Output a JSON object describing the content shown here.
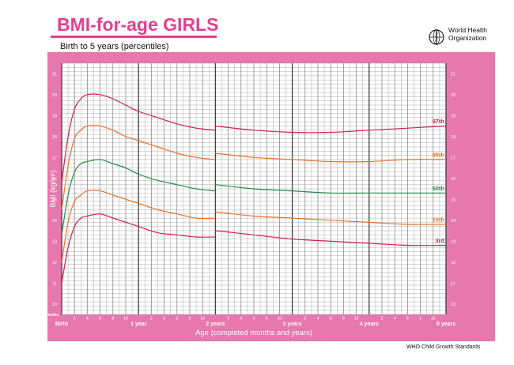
{
  "header": {
    "title": "BMI-for-age GIRLS",
    "subtitle": "Birth to 5 years (percentiles)",
    "org_line1": "World Health",
    "org_line2": "Organization"
  },
  "footer": {
    "source": "WHO Child Growth Standards"
  },
  "colors": {
    "frame": "#e678ad",
    "grid_bg": "#ffffff",
    "grid_minor": "#9a9a9a",
    "grid_major": "#404040",
    "p3": "#d12048",
    "p15": "#e8742a",
    "p50": "#258a46",
    "p85": "#e8742a",
    "p97": "#d12048"
  },
  "chart_data": {
    "type": "line",
    "title": "BMI-for-age GIRLS",
    "subtitle": "Birth to 5 years (percentiles)",
    "xlabel": "Age (completed months and years)",
    "ylabel": "BMI (kg/m²)",
    "xlim": [
      0,
      60
    ],
    "ylim": [
      9.5,
      21.5
    ],
    "months_label": "Months",
    "x_major_labels": [
      {
        "month": 0,
        "label": "Birth"
      },
      {
        "month": 12,
        "label": "1 year"
      },
      {
        "month": 24,
        "label": "2 years"
      },
      {
        "month": 36,
        "label": "3 years"
      },
      {
        "month": 48,
        "label": "4 years"
      },
      {
        "month": 60,
        "label": "5 years"
      }
    ],
    "x_minor_labels": [
      "2",
      "4",
      "6",
      "8",
      "10"
    ],
    "y_ticks": [
      10,
      11,
      12,
      13,
      14,
      15,
      16,
      17,
      18,
      19,
      20,
      21
    ],
    "grid": true,
    "series": [
      {
        "name": "97th",
        "color_key": "p97",
        "x": [
          0,
          1,
          2,
          3,
          4,
          6,
          8,
          10,
          12,
          15,
          18,
          21,
          24,
          24,
          30,
          36,
          42,
          48,
          54,
          60
        ],
        "y": [
          15.8,
          18.0,
          19.3,
          19.8,
          20.0,
          20.0,
          19.8,
          19.5,
          19.2,
          18.9,
          18.6,
          18.4,
          18.3,
          18.5,
          18.3,
          18.2,
          18.2,
          18.3,
          18.4,
          18.5
        ]
      },
      {
        "name": "85th",
        "color_key": "p85",
        "x": [
          0,
          1,
          2,
          3,
          4,
          6,
          8,
          10,
          12,
          15,
          18,
          21,
          24,
          24,
          30,
          36,
          42,
          48,
          54,
          60
        ],
        "y": [
          14.5,
          16.6,
          17.9,
          18.3,
          18.5,
          18.5,
          18.3,
          18.0,
          17.8,
          17.5,
          17.2,
          17.0,
          16.9,
          17.2,
          17.0,
          16.9,
          16.8,
          16.8,
          16.9,
          16.9
        ]
      },
      {
        "name": "50th",
        "color_key": "p50",
        "x": [
          0,
          1,
          2,
          3,
          4,
          6,
          8,
          10,
          12,
          15,
          18,
          21,
          24,
          24,
          30,
          36,
          42,
          48,
          54,
          60
        ],
        "y": [
          13.3,
          15.2,
          16.3,
          16.7,
          16.8,
          16.9,
          16.7,
          16.5,
          16.2,
          15.9,
          15.7,
          15.5,
          15.4,
          15.7,
          15.5,
          15.4,
          15.3,
          15.3,
          15.3,
          15.3
        ]
      },
      {
        "name": "15th",
        "color_key": "p15",
        "x": [
          0,
          1,
          2,
          3,
          4,
          6,
          8,
          10,
          12,
          15,
          18,
          21,
          24,
          24,
          30,
          36,
          42,
          48,
          54,
          60
        ],
        "y": [
          12.0,
          13.9,
          14.9,
          15.2,
          15.4,
          15.4,
          15.2,
          15.0,
          14.8,
          14.5,
          14.3,
          14.1,
          14.1,
          14.4,
          14.2,
          14.1,
          14.0,
          13.9,
          13.8,
          13.8
        ]
      },
      {
        "name": "3rd",
        "color_key": "p3",
        "x": [
          0,
          1,
          2,
          3,
          4,
          6,
          8,
          10,
          12,
          15,
          18,
          21,
          24,
          24,
          30,
          36,
          42,
          48,
          54,
          60
        ],
        "y": [
          11.0,
          12.7,
          13.7,
          14.1,
          14.2,
          14.3,
          14.1,
          13.9,
          13.7,
          13.4,
          13.3,
          13.2,
          13.2,
          13.5,
          13.3,
          13.1,
          13.0,
          12.9,
          12.8,
          12.8
        ]
      }
    ]
  }
}
